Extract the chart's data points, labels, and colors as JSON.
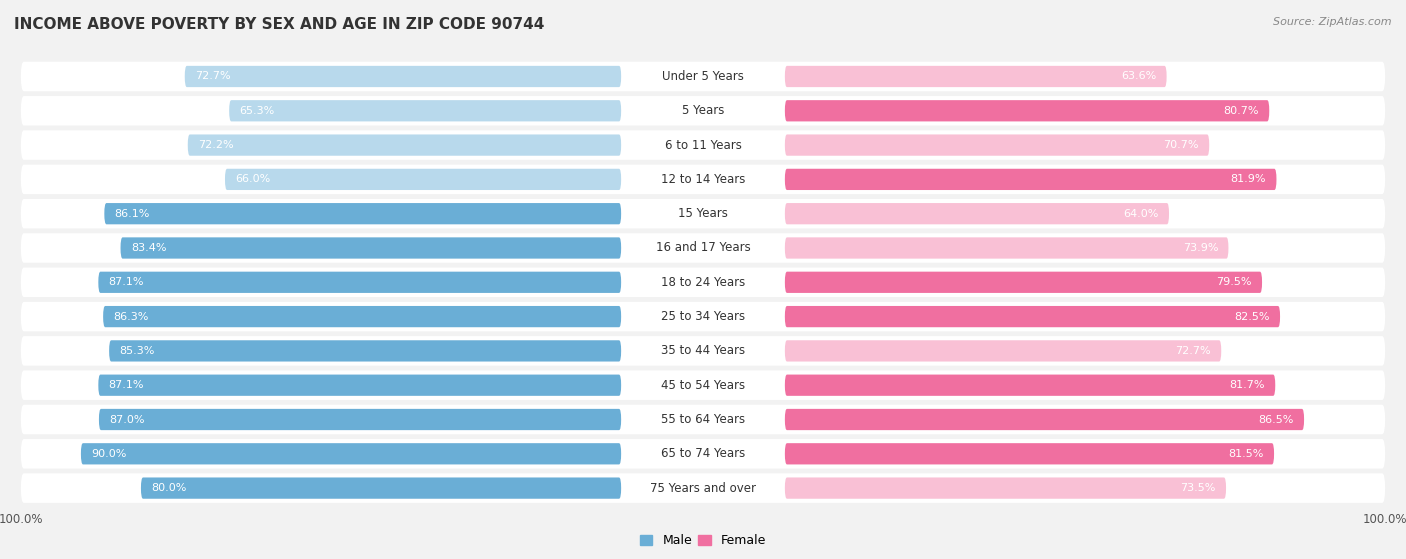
{
  "title": "INCOME ABOVE POVERTY BY SEX AND AGE IN ZIP CODE 90744",
  "source": "Source: ZipAtlas.com",
  "categories": [
    "Under 5 Years",
    "5 Years",
    "6 to 11 Years",
    "12 to 14 Years",
    "15 Years",
    "16 and 17 Years",
    "18 to 24 Years",
    "25 to 34 Years",
    "35 to 44 Years",
    "45 to 54 Years",
    "55 to 64 Years",
    "65 to 74 Years",
    "75 Years and over"
  ],
  "male_values": [
    72.7,
    65.3,
    72.2,
    66.0,
    86.1,
    83.4,
    87.1,
    86.3,
    85.3,
    87.1,
    87.0,
    90.0,
    80.0
  ],
  "female_values": [
    63.6,
    80.7,
    70.7,
    81.9,
    64.0,
    73.9,
    79.5,
    82.5,
    72.7,
    81.7,
    86.5,
    81.5,
    73.5
  ],
  "male_color": "#6aaed6",
  "male_light_color": "#b8d9ec",
  "female_color": "#f06fa0",
  "female_light_color": "#f9c0d5",
  "male_label": "Male",
  "female_label": "Female",
  "axis_max": 100.0,
  "bg_color": "#f2f2f2",
  "row_bg_color": "#ffffff",
  "title_fontsize": 11,
  "label_fontsize": 8.5,
  "value_fontsize": 8,
  "source_fontsize": 8
}
